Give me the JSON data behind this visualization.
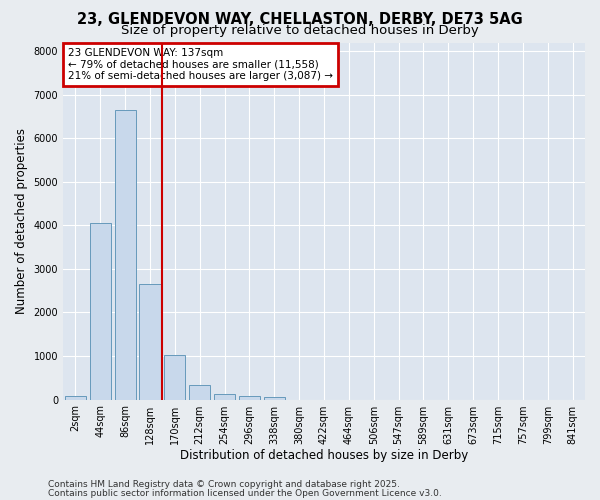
{
  "title1": "23, GLENDEVON WAY, CHELLASTON, DERBY, DE73 5AG",
  "title2": "Size of property relative to detached houses in Derby",
  "xlabel": "Distribution of detached houses by size in Derby",
  "ylabel": "Number of detached properties",
  "categories": [
    "2sqm",
    "44sqm",
    "86sqm",
    "128sqm",
    "170sqm",
    "212sqm",
    "254sqm",
    "296sqm",
    "338sqm",
    "380sqm",
    "422sqm",
    "464sqm",
    "506sqm",
    "547sqm",
    "589sqm",
    "631sqm",
    "673sqm",
    "715sqm",
    "757sqm",
    "799sqm",
    "841sqm"
  ],
  "values": [
    80,
    4050,
    6650,
    2650,
    1020,
    330,
    120,
    80,
    65,
    0,
    0,
    0,
    0,
    0,
    0,
    0,
    0,
    0,
    0,
    0,
    0
  ],
  "bar_color": "#c8d8eb",
  "bar_edge_color": "#6699bb",
  "red_line_x": 3.5,
  "annotation_title": "23 GLENDEVON WAY: 137sqm",
  "annotation_line1": "← 79% of detached houses are smaller (11,558)",
  "annotation_line2": "21% of semi-detached houses are larger (3,087) →",
  "annotation_box_color": "#cc0000",
  "ylim": [
    0,
    8200
  ],
  "yticks": [
    0,
    1000,
    2000,
    3000,
    4000,
    5000,
    6000,
    7000,
    8000
  ],
  "fig_bg": "#e8ecf0",
  "ax_bg": "#dde5ef",
  "grid_color": "#ffffff",
  "footer1": "Contains HM Land Registry data © Crown copyright and database right 2025.",
  "footer2": "Contains public sector information licensed under the Open Government Licence v3.0.",
  "title_fontsize": 10.5,
  "subtitle_fontsize": 9.5,
  "tick_fontsize": 7,
  "ylabel_fontsize": 8.5,
  "xlabel_fontsize": 8.5,
  "annotation_fontsize": 7.5,
  "footer_fontsize": 6.5
}
